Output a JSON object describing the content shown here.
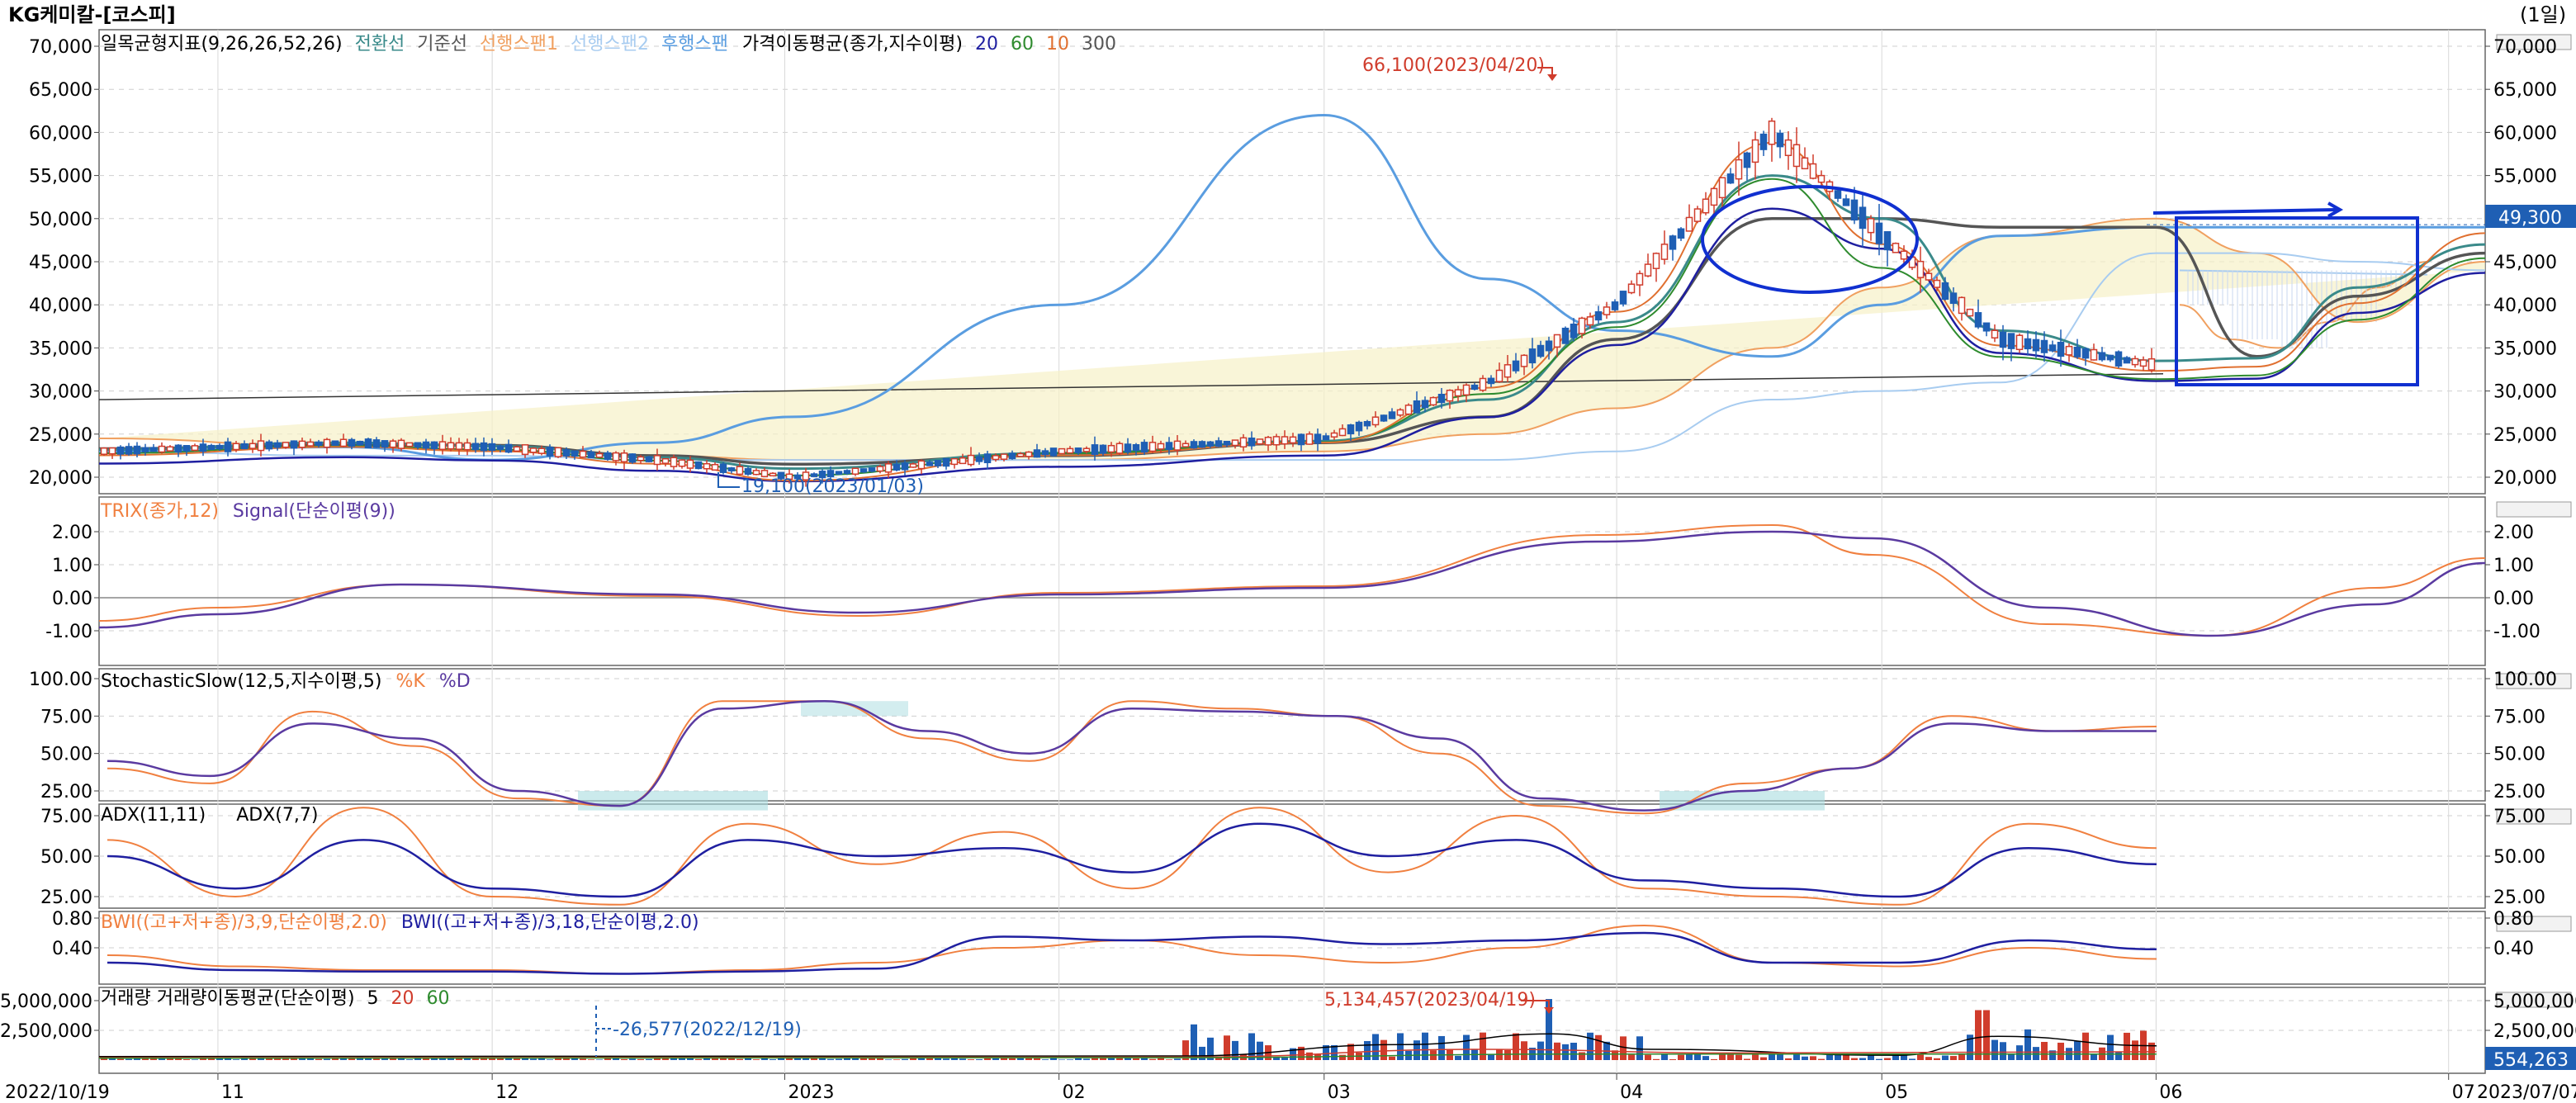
{
  "window": {
    "title": "KG케미칼-[코스피]",
    "period": "(1일)"
  },
  "colors": {
    "tenkan": "#3a8a8a",
    "kijun": "#555555",
    "span1": "#f0a060",
    "span2": "#a8ccf0",
    "chikou": "#5a9de0",
    "ma5": "#000000",
    "ma20": "#1f1fa0",
    "ma60": "#2e8b2e",
    "ma10": "#e07030",
    "ma300": "#333333",
    "up": "#d03c2c",
    "down": "#1f5fb4",
    "osc_orange": "#f08040",
    "osc_purple": "#5a3aa0",
    "highlight": "#1030d0",
    "fill_cyan": "#a8dce0"
  },
  "panels": {
    "price": {
      "legend_ichimoku": "일목균형지표(9,26,26,52,26)",
      "legend_tenkan": "전환선",
      "legend_kijun": "기준선",
      "legend_span1": "선행스팬1",
      "legend_span2": "선행스팬2",
      "legend_chikou": "후행스팬",
      "legend_ma": "가격이동평균(종가,지수이평)",
      "legend_p20": "20",
      "legend_p60": "60",
      "legend_p10": "10",
      "legend_p300": "300",
      "high_label": "66,100(2023/04/20)",
      "low_label": "19,100(2023/01/03)",
      "current_price": "49,300",
      "y_ticks": [
        "70,000",
        "65,000",
        "60,000",
        "55,000",
        "50,000",
        "45,000",
        "40,000",
        "35,000",
        "30,000",
        "25,000",
        "20,000"
      ]
    },
    "trix": {
      "legend_a": "TRIX(종가,12)",
      "legend_b": "Signal(단순이평(9))",
      "y_ticks": [
        "2.00",
        "1.00",
        "0.00",
        "-1.00"
      ]
    },
    "stoch": {
      "legend_a": "StochasticSlow(12,5,지수이평,5)",
      "legend_b": "%K",
      "legend_c": "%D",
      "y_ticks": [
        "100.00",
        "75.00",
        "50.00",
        "25.00"
      ]
    },
    "adx": {
      "legend_a": "ADX(11,11)",
      "legend_b": "ADX(7,7)",
      "y_ticks": [
        "75.00",
        "50.00",
        "25.00"
      ]
    },
    "bwi": {
      "legend_a": "BWI((고+저+종)/3,9,단순이평,2.0)",
      "legend_b": "BWI((고+저+종)/3,18,단순이평,2.0)",
      "y_ticks": [
        "0.80",
        "0.40"
      ]
    },
    "volume": {
      "legend_a": "거래량",
      "legend_b": "거래량이동평균(단순이평)",
      "legend_p5": "5",
      "legend_p20": "20",
      "legend_p60": "60",
      "max_label": "5,134,457(2023/04/19)",
      "min_label": "-26,577(2022/12/19)",
      "current_volume": "554,263",
      "y_ticks": [
        "5,000,000",
        "2,500,000"
      ]
    }
  },
  "x_axis": {
    "start_label": "2022/10/19",
    "end_label": "2023/07/07",
    "months": [
      "11",
      "12",
      "2023",
      "02",
      "03",
      "04",
      "05",
      "06",
      "07"
    ]
  },
  "chart_data": [
    {
      "type": "line",
      "title": "일목균형지표(9,26,26,52,26)",
      "x_range": [
        "2022/10/19",
        "2023/07/07"
      ],
      "ylim": [
        18000,
        71000
      ],
      "x": [
        "2022/10/19",
        "2022/11/15",
        "2022/12/01",
        "2022/12/19",
        "2023/01/03",
        "2023/02/01",
        "2023/03/02",
        "2023/03/20",
        "2023/04/03",
        "2023/04/20",
        "2023/05/02",
        "2023/05/15",
        "2023/06/01",
        "2023/06/12",
        "2023/06/23",
        "2023/07/07"
      ],
      "series": [
        {
          "name": "종가",
          "values": [
            23000,
            24000,
            23500,
            22000,
            20000,
            23000,
            24500,
            31000,
            40000,
            60000,
            48000,
            36000,
            33000,
            33500,
            41000,
            49300
          ]
        },
        {
          "name": "전환선",
          "values": [
            23200,
            24000,
            23600,
            22300,
            21000,
            22800,
            24200,
            29000,
            38000,
            55000,
            50000,
            37000,
            33500,
            33800,
            42000,
            47000
          ]
        },
        {
          "name": "기준선",
          "values": [
            23300,
            23800,
            23700,
            22500,
            21500,
            22500,
            24000,
            27000,
            36000,
            50000,
            50000,
            49000,
            49000,
            34000,
            41000,
            46000
          ]
        },
        {
          "name": "선행스팬1",
          "values": [
            24500,
            23500,
            23000,
            22500,
            22000,
            22000,
            23000,
            25000,
            28000,
            35000,
            42000,
            48000,
            50000,
            46000,
            38000,
            45000
          ]
        },
        {
          "name": "선행스팬2",
          "values": [
            23000,
            22500,
            22500,
            22000,
            22000,
            22000,
            22000,
            22000,
            23000,
            29000,
            30000,
            31000,
            46000,
            46000,
            45000,
            44000
          ]
        },
        {
          "name": "후행스팬",
          "values": [
            23000,
            23500,
            22000,
            24000,
            27000,
            40000,
            62000,
            43000,
            37000,
            34000,
            40000,
            48000,
            49000,
            49000,
            49000,
            49000
          ]
        }
      ],
      "annotations": [
        "66,100(2023/04/20)",
        "19,100(2023/01/03)"
      ],
      "high": {
        "date": "2023/04/20",
        "value": 66100
      },
      "low": {
        "date": "2023/01/03",
        "value": 19100
      },
      "last": 49300,
      "grid": true
    },
    {
      "type": "line",
      "title": "TRIX(종가,12)",
      "ylim": [
        -1.3,
        2.5
      ],
      "x": [
        "2022/10/19",
        "2022/11/01",
        "2022/11/21",
        "2022/12/19",
        "2023/01/10",
        "2023/02/01",
        "2023/03/02",
        "2023/04/01",
        "2023/04/20",
        "2023/05/01",
        "2023/05/20",
        "2023/06/07",
        "2023/06/25",
        "2023/07/07"
      ],
      "series": [
        {
          "name": "TRIX",
          "values": [
            -0.7,
            -0.3,
            0.4,
            0.05,
            -0.55,
            0.15,
            0.35,
            1.9,
            2.2,
            1.3,
            -0.8,
            -1.15,
            0.3,
            1.2
          ]
        },
        {
          "name": "Signal",
          "values": [
            -0.9,
            -0.5,
            0.4,
            0.1,
            -0.45,
            0.1,
            0.3,
            1.7,
            2.0,
            1.8,
            -0.3,
            -1.15,
            -0.2,
            1.05
          ]
        }
      ]
    },
    {
      "type": "line",
      "title": "StochasticSlow(12,5,지수이평,5)",
      "ylim": [
        0,
        100
      ],
      "series": [
        {
          "name": "%K",
          "values": [
            40,
            30,
            78,
            55,
            20,
            15,
            85,
            85,
            60,
            45,
            85,
            80,
            75,
            50,
            15,
            10,
            30,
            40,
            75,
            65,
            68
          ]
        },
        {
          "name": "%D",
          "values": [
            45,
            35,
            70,
            60,
            25,
            15,
            80,
            85,
            65,
            50,
            80,
            78,
            75,
            60,
            20,
            12,
            25,
            40,
            70,
            65,
            65
          ]
        }
      ]
    },
    {
      "type": "line",
      "title": "ADX",
      "ylim": [
        15,
        85
      ],
      "series": [
        {
          "name": "ADX(11,11)",
          "values": [
            50,
            30,
            60,
            30,
            25,
            60,
            50,
            55,
            40,
            70,
            50,
            60,
            35,
            30,
            25,
            55,
            45
          ]
        },
        {
          "name": "ADX(7,7)",
          "values": [
            60,
            25,
            80,
            25,
            20,
            70,
            45,
            65,
            30,
            80,
            40,
            75,
            30,
            25,
            20,
            70,
            55
          ]
        }
      ]
    },
    {
      "type": "line",
      "title": "BWI",
      "ylim": [
        0,
        1
      ],
      "series": [
        {
          "name": "BWI(9)",
          "values": [
            0.3,
            0.15,
            0.1,
            0.1,
            0.05,
            0.1,
            0.2,
            0.4,
            0.5,
            0.3,
            0.2,
            0.4,
            0.7,
            0.2,
            0.15,
            0.4,
            0.25
          ]
        },
        {
          "name": "BWI(18)",
          "values": [
            0.2,
            0.1,
            0.08,
            0.08,
            0.05,
            0.08,
            0.12,
            0.55,
            0.5,
            0.55,
            0.45,
            0.5,
            0.6,
            0.2,
            0.2,
            0.5,
            0.38
          ]
        }
      ]
    },
    {
      "type": "bar",
      "title": "거래량",
      "ylim": [
        0,
        6000000
      ],
      "max": {
        "date": "2023/04/19",
        "value": 5134457
      },
      "last": 554263
    }
  ]
}
